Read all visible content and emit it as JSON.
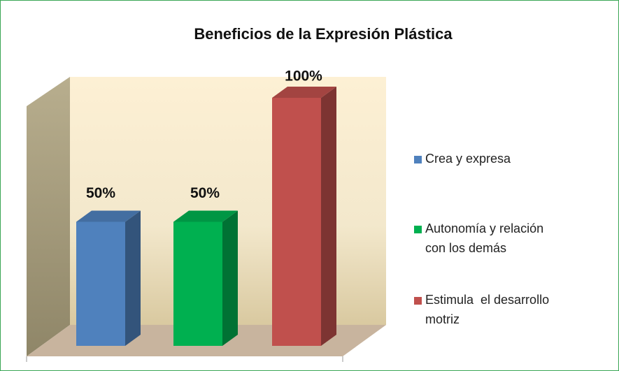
{
  "chart_data": {
    "type": "bar3d",
    "title": "Beneficios de la Expresión Plástica",
    "series": [
      {
        "name": "Crea y expresa",
        "color": "#4f81bd",
        "values": [
          50
        ],
        "value_labels": [
          "50%"
        ]
      },
      {
        "name": "Autonomía y relación con los demás",
        "color": "#00b050",
        "values": [
          50
        ],
        "value_labels": [
          "50%"
        ]
      },
      {
        "name": "Estimula  el desarrollo motriz",
        "color": "#c0504d",
        "values": [
          100
        ],
        "value_labels": [
          "100%"
        ]
      }
    ],
    "ylim": [
      0,
      100
    ],
    "legend": "right"
  }
}
